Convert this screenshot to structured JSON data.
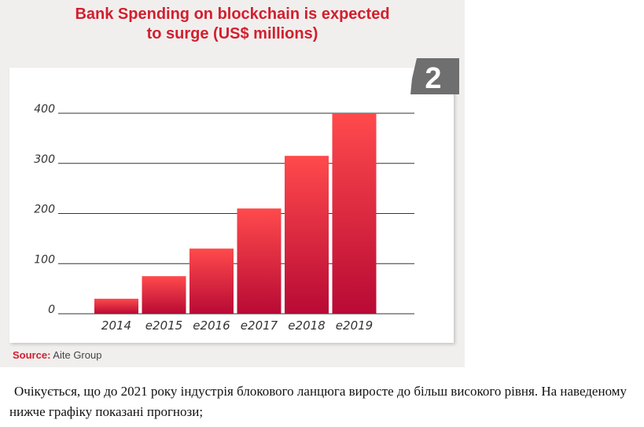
{
  "chart_data": {
    "type": "bar",
    "title": "Bank Spending on blockchain is expected\nto surge (US$ millions)",
    "categories": [
      "2014",
      "e2015",
      "e2016",
      "e2017",
      "e2018",
      "e2019"
    ],
    "values": [
      30,
      75,
      130,
      210,
      315,
      400
    ],
    "yticks": [
      0,
      100,
      200,
      300,
      400
    ],
    "ylim": [
      0,
      400
    ],
    "grid": true,
    "bar_color_top": "#ff4a4c",
    "bar_color_bottom": "#b80a35"
  },
  "badge": "2",
  "source": {
    "label": "Source:",
    "text": " Aite Group"
  },
  "caption": "Очікується, що до 2021 року індустрія блокового ланцюга виросте до більш високого рівня. На наведеному нижче графіку показані прогнози;",
  "colors": {
    "title": "#d21f2e",
    "badge": "#6f6f6f"
  }
}
